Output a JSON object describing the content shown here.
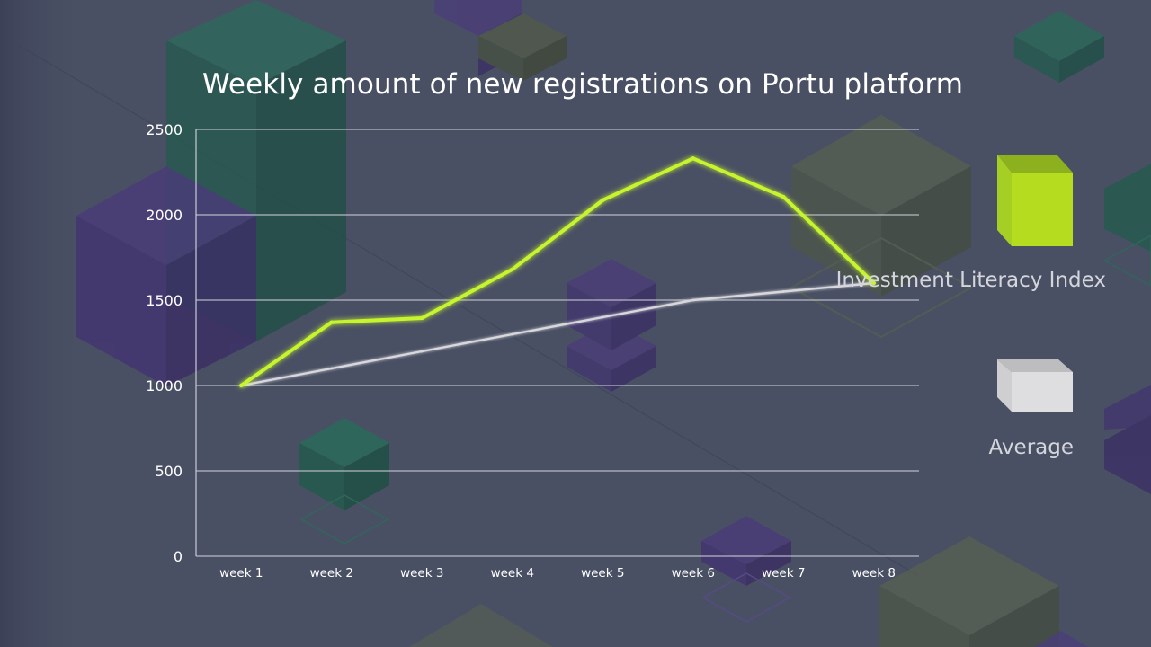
{
  "chart_data": {
    "type": "line",
    "title": "Weekly amount of new registrations on Portu platform",
    "categories": [
      "week 1",
      "week 2",
      "week 3",
      "week 4",
      "week 5",
      "week 6",
      "week 7",
      "week 8"
    ],
    "series": [
      {
        "name": "Investment Literacy Index",
        "color": "#c6f52e",
        "values": [
          1000,
          1370,
          1395,
          1680,
          2085,
          2330,
          2105,
          1600
        ]
      },
      {
        "name": "Average",
        "color": "#d8d8dc",
        "values": [
          1000,
          1100,
          1200,
          1300,
          1400,
          1500,
          1550,
          1600
        ]
      }
    ],
    "ylim": [
      0,
      2500
    ],
    "yticks": [
      0,
      500,
      1000,
      1500,
      2000,
      2500
    ],
    "grid": true,
    "legend_position": "right"
  },
  "colors": {
    "background": "#4a5064",
    "series_1": "#c6f52e",
    "series_2": "#d8d8dc"
  }
}
